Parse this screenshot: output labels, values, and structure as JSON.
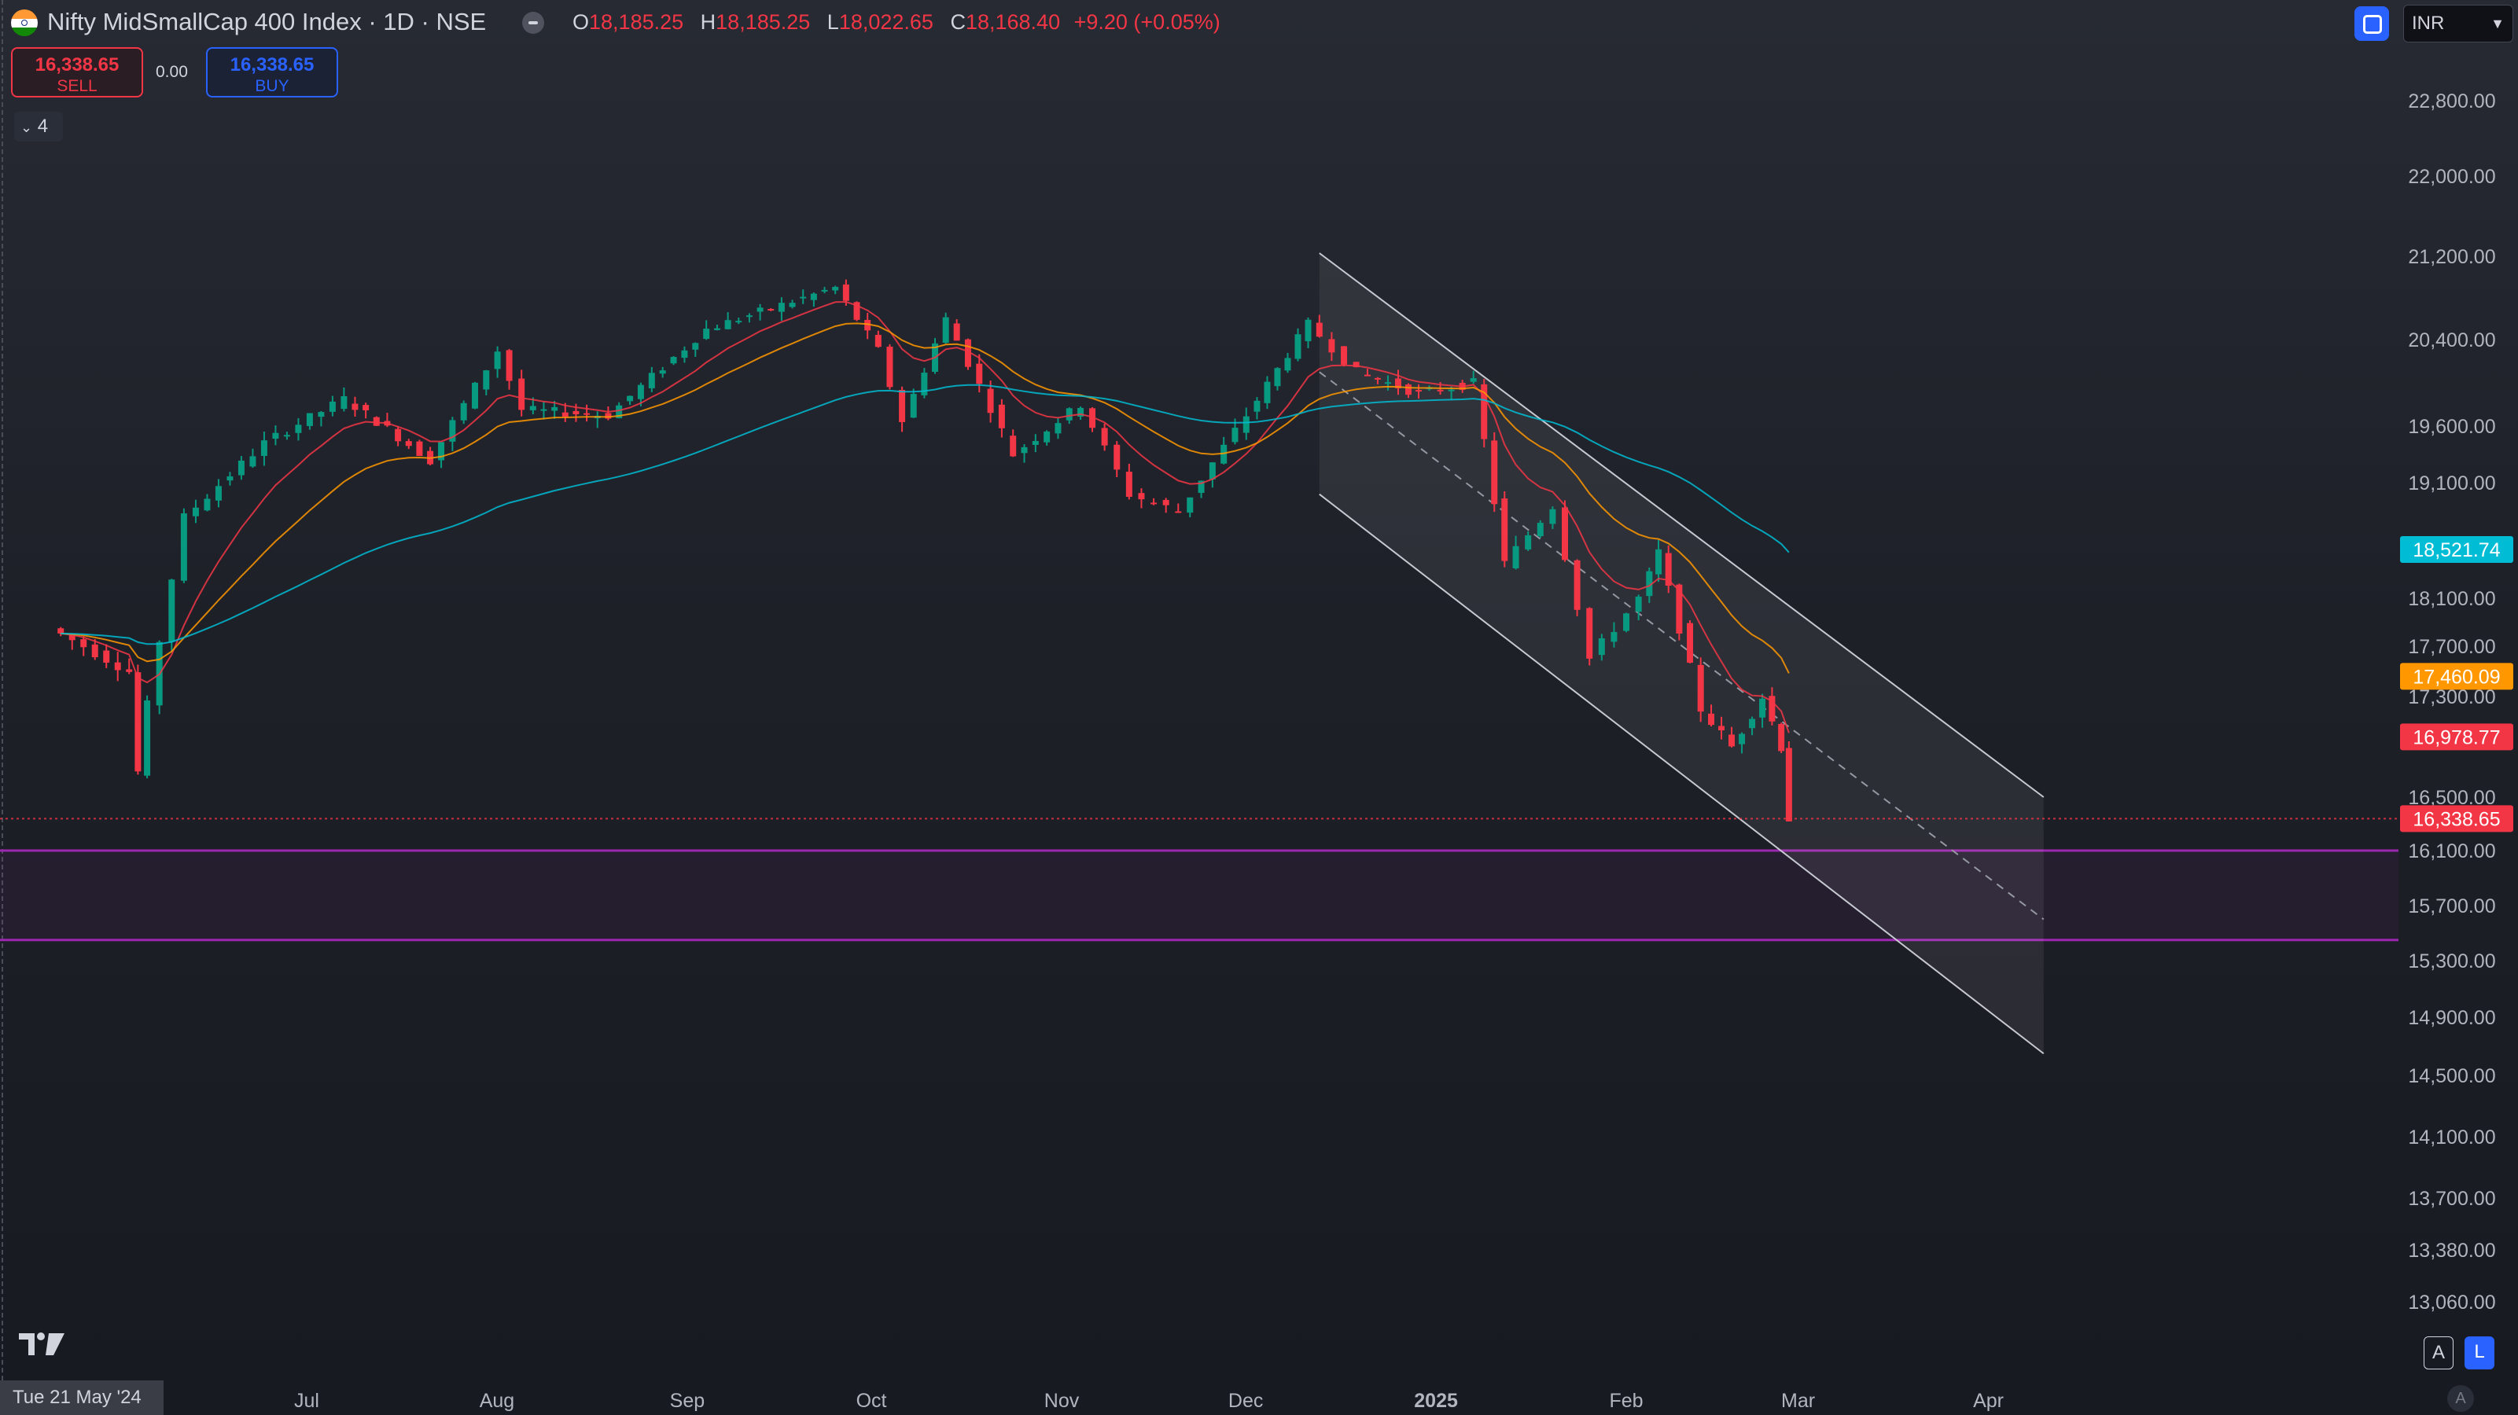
{
  "header": {
    "title": "Nifty MidSmallCap 400 Index · 1D · NSE",
    "ohlc": {
      "o_label": "O",
      "o": "18,185.25",
      "h_label": "H",
      "h": "18,185.25",
      "l_label": "L",
      "l": "18,022.65",
      "c_label": "C",
      "c": "18,168.40",
      "change": "+9.20 (+0.05%)"
    },
    "currency": "INR"
  },
  "trade": {
    "sell_price": "16,338.65",
    "sell_label": "SELL",
    "spread": "0.00",
    "buy_price": "16,338.65",
    "buy_label": "BUY"
  },
  "indicators_toggle": {
    "count": "4"
  },
  "bottom": {
    "date_cursor": "Tue 21 May '24",
    "auto_label": "A",
    "axis_a": "A",
    "axis_l": "L"
  },
  "colors": {
    "up": "#089981",
    "down": "#f23645",
    "ema_fast": "#f23645",
    "ema_mid": "#ff9800",
    "ema_slow": "#00bcd4",
    "zone": "#9c27b0"
  },
  "chart_data": {
    "type": "candlestick",
    "title": "Nifty MidSmallCap 400 Index · 1D · NSE",
    "y_axis_ticks": [
      22800,
      22000,
      21200,
      20400,
      19600,
      19100,
      18100,
      17700,
      17300,
      16500,
      16100,
      15700,
      15300,
      14900,
      14500,
      14100,
      13700,
      13380,
      13060
    ],
    "x_axis_ticks": [
      {
        "label": "Jul",
        "date": "2024-07-01"
      },
      {
        "label": "Aug",
        "date": "2024-08-01"
      },
      {
        "label": "Sep",
        "date": "2024-09-01"
      },
      {
        "label": "Oct",
        "date": "2024-10-01"
      },
      {
        "label": "Nov",
        "date": "2024-11-01"
      },
      {
        "label": "Dec",
        "date": "2024-12-01"
      },
      {
        "label": "2025",
        "date": "2025-01-01",
        "bold": true
      },
      {
        "label": "Feb",
        "date": "2025-02-01"
      },
      {
        "label": "Mar",
        "date": "2025-03-01"
      },
      {
        "label": "Apr",
        "date": "2025-04-01"
      }
    ],
    "price_series": [
      {
        "date": "2024-05-21",
        "value": 17850
      },
      {
        "date": "2024-06-03",
        "value": 17500
      },
      {
        "date": "2024-06-04",
        "value": 16700
      },
      {
        "date": "2024-06-12",
        "value": 18800
      },
      {
        "date": "2024-06-25",
        "value": 19450
      },
      {
        "date": "2024-07-08",
        "value": 19850
      },
      {
        "date": "2024-07-22",
        "value": 19300
      },
      {
        "date": "2024-08-02",
        "value": 20300
      },
      {
        "date": "2024-08-06",
        "value": 19750
      },
      {
        "date": "2024-08-20",
        "value": 19700
      },
      {
        "date": "2024-09-05",
        "value": 20500
      },
      {
        "date": "2024-09-26",
        "value": 20900
      },
      {
        "date": "2024-10-03",
        "value": 20300
      },
      {
        "date": "2024-10-07",
        "value": 19650
      },
      {
        "date": "2024-10-14",
        "value": 20600
      },
      {
        "date": "2024-10-25",
        "value": 19350
      },
      {
        "date": "2024-11-05",
        "value": 19800
      },
      {
        "date": "2024-11-13",
        "value": 19000
      },
      {
        "date": "2024-11-21",
        "value": 18850
      },
      {
        "date": "2024-12-02",
        "value": 19700
      },
      {
        "date": "2024-12-12",
        "value": 20550
      },
      {
        "date": "2024-12-20",
        "value": 20100
      },
      {
        "date": "2024-12-30",
        "value": 19900
      },
      {
        "date": "2025-01-08",
        "value": 20000
      },
      {
        "date": "2025-01-13",
        "value": 18400
      },
      {
        "date": "2025-01-21",
        "value": 18900
      },
      {
        "date": "2025-01-27",
        "value": 17600
      },
      {
        "date": "2025-02-04",
        "value": 18100
      },
      {
        "date": "2025-02-07",
        "value": 18500
      },
      {
        "date": "2025-02-14",
        "value": 17200
      },
      {
        "date": "2025-02-19",
        "value": 16900
      },
      {
        "date": "2025-02-24",
        "value": 17300
      },
      {
        "date": "2025-02-27",
        "value": 16900
      },
      {
        "date": "2025-02-28",
        "value": 16338.65
      }
    ],
    "moving_averages": [
      {
        "value": "18,521.74",
        "color": "#00bcd4"
      },
      {
        "value": "17,460.09",
        "color": "#ff9800"
      },
      {
        "value": "16,978.77",
        "color": "#f23645"
      }
    ],
    "last_price": {
      "value": "16,338.65",
      "color": "#f23645"
    },
    "support_zone": {
      "upper": 16100,
      "lower": 15450,
      "color": "#9c27b0"
    },
    "regression_channel": {
      "start": "2024-12-13",
      "end": "2025-04-10"
    }
  }
}
